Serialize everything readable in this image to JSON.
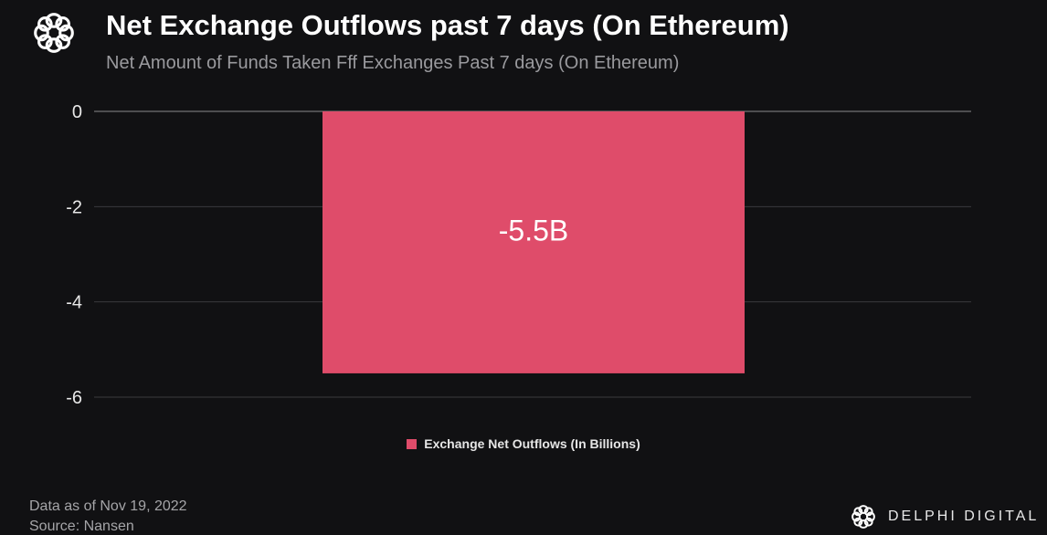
{
  "header": {
    "title": "Net Exchange Outflows past 7 days (On Ethereum)",
    "subtitle": "Net Amount of Funds Taken Fff Exchanges Past 7 days (On Ethereum)"
  },
  "chart_data": {
    "type": "bar",
    "title": "Net Exchange Outflows past 7 days (On Ethereum)",
    "subtitle": "Net Amount of Funds Taken Fff Exchanges Past 7 days (On Ethereum)",
    "categories": [
      ""
    ],
    "series": [
      {
        "name": "Exchange Net Outflows (In Billions)",
        "values": [
          -5.5
        ],
        "color": "#df4c6a"
      }
    ],
    "data_labels": [
      "-5.5B"
    ],
    "yticks": [
      0,
      -2,
      -4,
      -6
    ],
    "ytick_labels": [
      "0",
      "-2",
      "-4",
      "-6"
    ],
    "ylim": [
      -6,
      0
    ],
    "xlabel": "",
    "ylabel": "",
    "grid": true,
    "legend_position": "bottom"
  },
  "footer": {
    "date": "Data as of Nov 19, 2022",
    "source": "Source: Nansen",
    "brand": "DELPHI DIGITAL"
  }
}
